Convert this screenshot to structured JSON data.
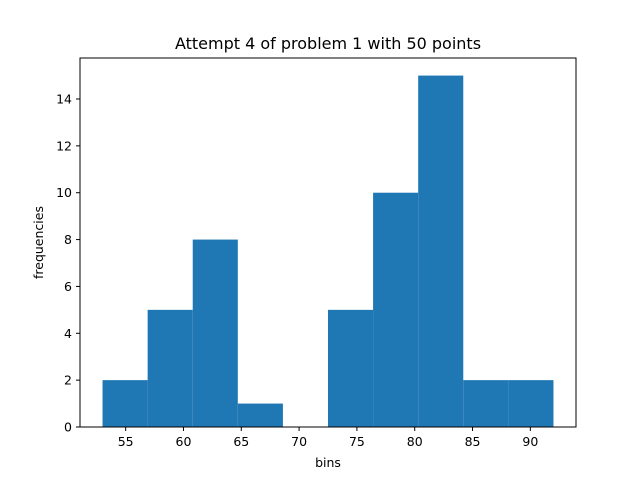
{
  "chart_data": {
    "type": "bar",
    "title": "Attempt 4 of problem 1 with 50 points",
    "xlabel": "bins",
    "ylabel": "frequencies",
    "bins": [
      {
        "start": 53.0,
        "end": 56.9,
        "value": 2
      },
      {
        "start": 56.9,
        "end": 60.8,
        "value": 5
      },
      {
        "start": 60.8,
        "end": 64.7,
        "value": 8
      },
      {
        "start": 64.7,
        "end": 68.6,
        "value": 1
      },
      {
        "start": 68.6,
        "end": 72.5,
        "value": 0
      },
      {
        "start": 72.5,
        "end": 76.4,
        "value": 5
      },
      {
        "start": 76.4,
        "end": 80.3,
        "value": 10
      },
      {
        "start": 80.3,
        "end": 84.2,
        "value": 15
      },
      {
        "start": 84.2,
        "end": 88.1,
        "value": 2
      },
      {
        "start": 88.1,
        "end": 92.0,
        "value": 2
      }
    ],
    "xlim": [
      51.05,
      93.95
    ],
    "ylim": [
      0,
      15.75
    ],
    "xticks": [
      55,
      60,
      65,
      70,
      75,
      80,
      85,
      90
    ],
    "yticks": [
      0,
      2,
      4,
      6,
      8,
      10,
      12,
      14
    ],
    "bar_color": "#1f77b4",
    "grid": false,
    "legend": false
  }
}
